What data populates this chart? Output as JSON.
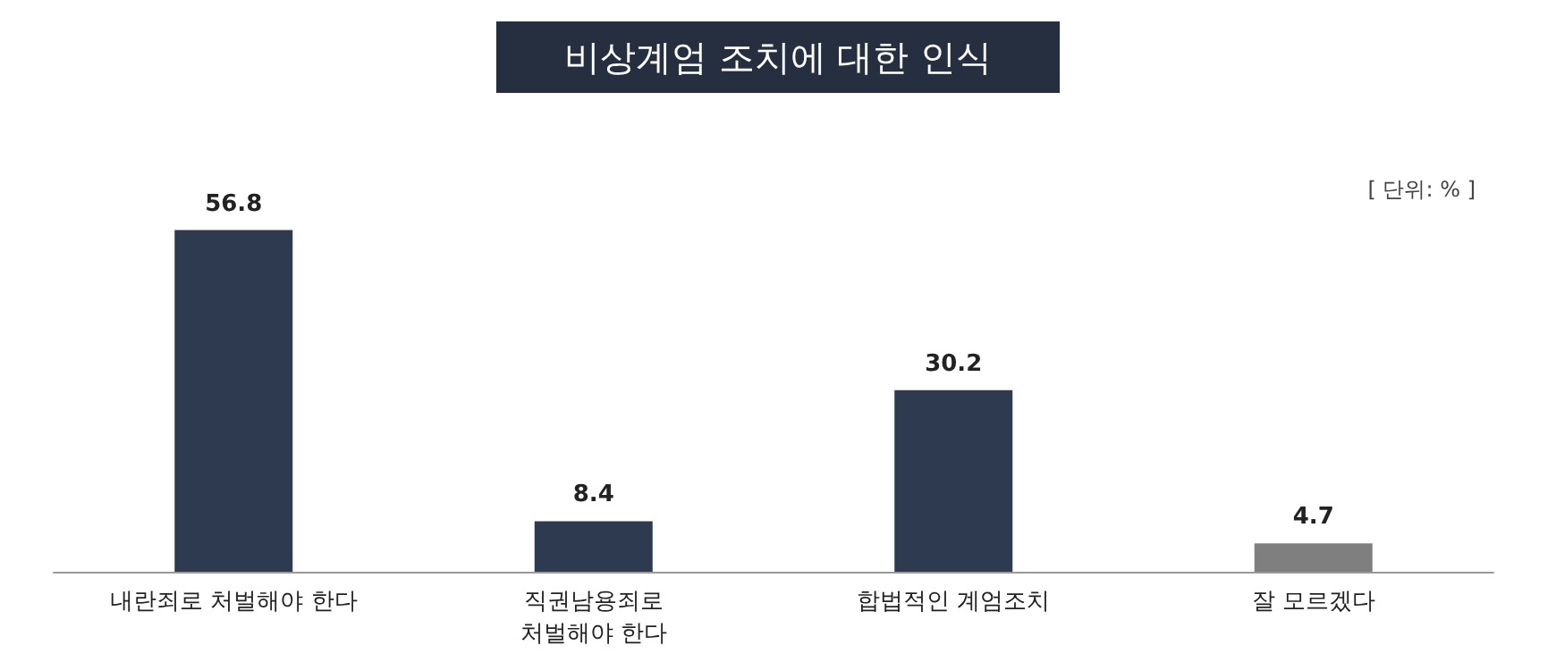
{
  "chart_data": {
    "type": "bar",
    "title": "비상계엄 조치에 대한 인식",
    "annotations": [
      "[ 단위: % ]"
    ],
    "categories": [
      "내란죄로 처벌해야 한다",
      "직권남용죄로\n처벌해야 한다",
      "합법적인 계엄조치",
      "잘 모르겠다"
    ],
    "values": [
      56.8,
      8.4,
      30.2,
      4.7
    ],
    "colors": [
      "#2e3a50",
      "#2e3a50",
      "#2e3a50",
      "#7f7f7f"
    ],
    "data_labels": true
  }
}
